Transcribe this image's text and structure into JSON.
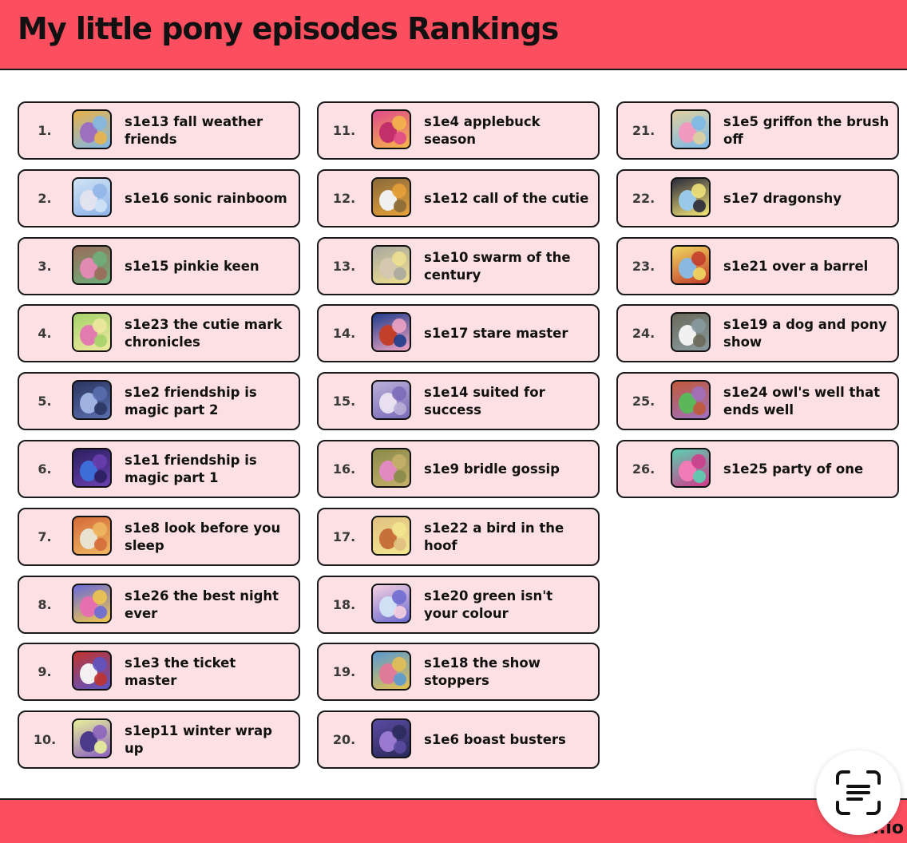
{
  "header": {
    "title": "My little pony episodes Rankings",
    "bg_color": "#fb4f60"
  },
  "rankings": [
    {
      "rank": "1.",
      "title": "s1e13 fall weather friends",
      "thumb": [
        "#e8b24a",
        "#7fb7e6",
        "#9d6fbf"
      ]
    },
    {
      "rank": "2.",
      "title": "s1e16 sonic rainboom",
      "thumb": [
        "#cfe3f5",
        "#8fb4e8",
        "#e3e3f0"
      ]
    },
    {
      "rank": "3.",
      "title": "s1e15 pinkie keen",
      "thumb": [
        "#9a6b5a",
        "#6db07b",
        "#e08ab4"
      ]
    },
    {
      "rank": "4.",
      "title": "s1e23 the cutie mark chronicles",
      "thumb": [
        "#a6d36b",
        "#f0e9a0",
        "#e27bb0"
      ]
    },
    {
      "rank": "5.",
      "title": "s1e2 friendship is magic part 2",
      "thumb": [
        "#2a3560",
        "#5b6fb0",
        "#9fb2e0"
      ]
    },
    {
      "rank": "6.",
      "title": "s1e1 friendship is magic part 1",
      "thumb": [
        "#2b1f5f",
        "#6a3fb0",
        "#3d6dd6"
      ]
    },
    {
      "rank": "7.",
      "title": "s1e8 look before you sleep",
      "thumb": [
        "#d46a3a",
        "#f0b862",
        "#e8e2d0"
      ]
    },
    {
      "rank": "8.",
      "title": "s1e26 the best night ever",
      "thumb": [
        "#6a6ad9",
        "#f1c84a",
        "#e66fb0"
      ]
    },
    {
      "rank": "9.",
      "title": "s1e3 the ticket master",
      "thumb": [
        "#c0332f",
        "#5c55c5",
        "#f2f0f0"
      ]
    },
    {
      "rank": "10.",
      "title": "s1ep11 winter wrap up",
      "thumb": [
        "#e8ef9a",
        "#8a5fc0",
        "#4a3a8a"
      ]
    },
    {
      "rank": "11.",
      "title": "s1e4 applebuck season",
      "thumb": [
        "#e04a8a",
        "#f4b74a",
        "#c22f6a"
      ]
    },
    {
      "rank": "12.",
      "title": "s1e12 call of the cutie",
      "thumb": [
        "#8a6a3a",
        "#e8a23a",
        "#f0f0f0"
      ]
    },
    {
      "rank": "13.",
      "title": "s1e10 swarm of the century",
      "thumb": [
        "#a8a8a0",
        "#f0e090",
        "#d4c8b0"
      ]
    },
    {
      "rank": "14.",
      "title": "s1e17 stare master",
      "thumb": [
        "#1f3c8a",
        "#f3a6c6",
        "#c23f2a"
      ]
    },
    {
      "rank": "15.",
      "title": "s1e14 suited for success",
      "thumb": [
        "#b8b0d8",
        "#7a6ab8",
        "#e8e0f0"
      ]
    },
    {
      "rank": "16.",
      "title": "s1e9 bridle gossip",
      "thumb": [
        "#8a8a4a",
        "#c5b06a",
        "#e08ac0"
      ]
    },
    {
      "rank": "17.",
      "title": "s1e22 a bird in the hoof",
      "thumb": [
        "#e0c080",
        "#f3e890",
        "#c8703a"
      ]
    },
    {
      "rank": "18.",
      "title": "s1e20 green isn't your colour",
      "thumb": [
        "#f5d0e0",
        "#6a6ad0",
        "#d0e0f5"
      ]
    },
    {
      "rank": "19.",
      "title": "s1e18 the show stoppers",
      "thumb": [
        "#5a9ad0",
        "#e8c050",
        "#e07a9a"
      ]
    },
    {
      "rank": "20.",
      "title": "s1e6 boast busters",
      "thumb": [
        "#5a4aa0",
        "#2a2a5a",
        "#9a7ad0"
      ]
    },
    {
      "rank": "21.",
      "title": "s1e5 griffon the brush off",
      "thumb": [
        "#e0d0a0",
        "#7ab8e8",
        "#f09ac0"
      ]
    },
    {
      "rank": "22.",
      "title": "s1e7 dragonshy",
      "thumb": [
        "#2a2a3a",
        "#f6e87a",
        "#9ac8e8"
      ]
    },
    {
      "rank": "23.",
      "title": "s1e21 over a barrel",
      "thumb": [
        "#f0d860",
        "#c23a2a",
        "#8ab8e0"
      ]
    },
    {
      "rank": "24.",
      "title": "s1e19 a dog and pony show",
      "thumb": [
        "#6a6a5a",
        "#8a9aa0",
        "#f0f0f0"
      ]
    },
    {
      "rank": "25.",
      "title": "s1e24 owl's well that ends well",
      "thumb": [
        "#c05a3a",
        "#a070c0",
        "#5ab85a"
      ]
    },
    {
      "rank": "26.",
      "title": "s1e25 party of one",
      "thumb": [
        "#5ad0b0",
        "#d03a8a",
        "#f27ab6"
      ]
    }
  ],
  "footer": {
    "brand": "so...io",
    "scan_button_icon": "scan-text-icon"
  }
}
